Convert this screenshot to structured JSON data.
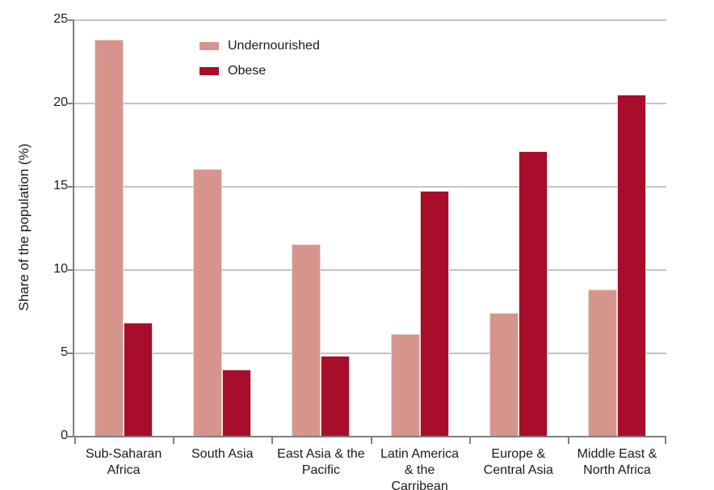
{
  "chart_data": {
    "type": "bar",
    "title": "",
    "xlabel": "",
    "ylabel": "Share of the population (%)",
    "ylim": [
      0,
      25
    ],
    "yticks": [
      0,
      5,
      10,
      15,
      20,
      25
    ],
    "grid": true,
    "legend_position": "top-left-inside",
    "categories": [
      "Sub-Saharan Africa",
      "South Asia",
      "East Asia & the Pacific",
      "Latin America & the Carribean",
      "Europe & Central Asia",
      "Middle East & North Africa"
    ],
    "series": [
      {
        "name": "Undernourished",
        "color": "#D6958C",
        "values": [
          23.8,
          16.0,
          11.5,
          6.1,
          7.4,
          8.8
        ]
      },
      {
        "name": "Obese",
        "color": "#A80D2B",
        "values": [
          6.8,
          4.0,
          4.8,
          14.7,
          17.1,
          20.5
        ]
      }
    ]
  },
  "colors": {
    "background": "#FFFFFF",
    "grid": "#C3C3C3",
    "axis": "#808080",
    "text": "#1A1A1A",
    "bar_border": "#EEDAD4"
  }
}
